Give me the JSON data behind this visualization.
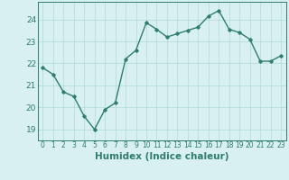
{
  "x": [
    0,
    1,
    2,
    3,
    4,
    5,
    6,
    7,
    8,
    9,
    10,
    11,
    12,
    13,
    14,
    15,
    16,
    17,
    18,
    19,
    20,
    21,
    22,
    23
  ],
  "y": [
    21.8,
    21.5,
    20.7,
    20.5,
    19.6,
    19.0,
    19.9,
    20.2,
    22.2,
    22.6,
    23.85,
    23.55,
    23.2,
    23.35,
    23.5,
    23.65,
    24.15,
    24.4,
    23.55,
    23.4,
    23.1,
    22.1,
    22.1,
    22.35
  ],
  "line_color": "#2e7d6e",
  "marker": "D",
  "marker_size": 1.8,
  "linewidth": 1.0,
  "bg_color": "#d9f0f0",
  "grid_color": "#b0d8d8",
  "xlabel": "Humidex (Indice chaleur)",
  "ylabel": "",
  "ylim": [
    18.5,
    24.8
  ],
  "xlim": [
    -0.5,
    23.5
  ],
  "yticks": [
    19,
    20,
    21,
    22,
    23,
    24
  ],
  "xticks": [
    0,
    1,
    2,
    3,
    4,
    5,
    6,
    7,
    8,
    9,
    10,
    11,
    12,
    13,
    14,
    15,
    16,
    17,
    18,
    19,
    20,
    21,
    22,
    23
  ],
  "xlabel_fontsize": 7.5,
  "ytick_fontsize": 6.5,
  "xtick_fontsize": 5.5
}
